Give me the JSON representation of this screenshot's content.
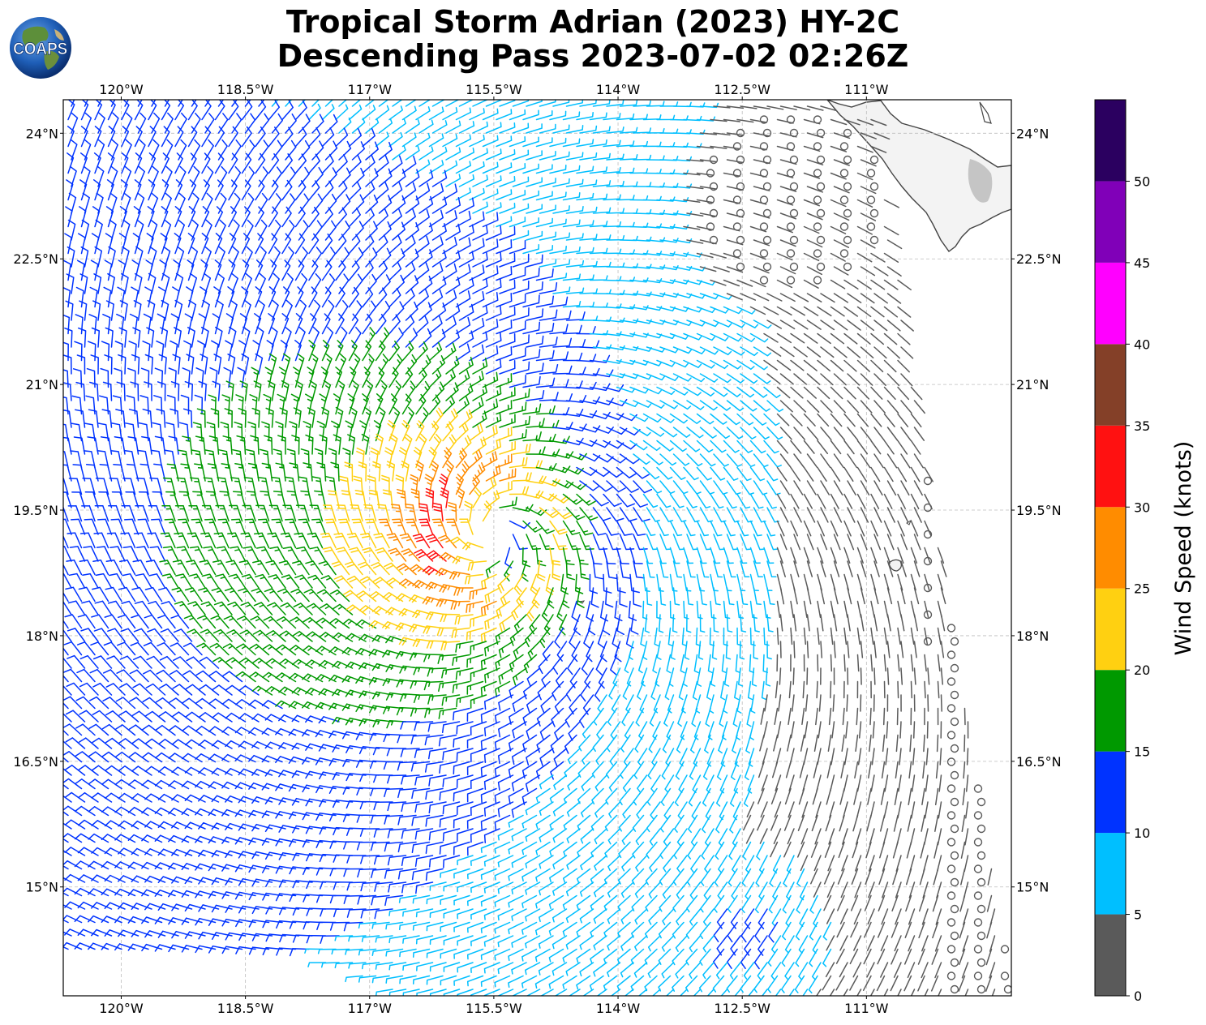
{
  "title": {
    "line1": "Tropical Storm Adrian (2023) HY-2C",
    "line2": "Descending Pass 2023-07-02 02:26Z"
  },
  "logo": {
    "text": "COAPS",
    "icon": "globe-icon"
  },
  "map": {
    "lon_range": [
      -120.7,
      -109.25
    ],
    "lat_range": [
      13.7,
      24.4
    ],
    "lon_ticks": [
      {
        "value": -120,
        "label": "120°W"
      },
      {
        "value": -118.5,
        "label": "118.5°W"
      },
      {
        "value": -117,
        "label": "117°W"
      },
      {
        "value": -115.5,
        "label": "115.5°W"
      },
      {
        "value": -114,
        "label": "114°W"
      },
      {
        "value": -112.5,
        "label": "112.5°W"
      },
      {
        "value": -111,
        "label": "111°W"
      }
    ],
    "lat_ticks": [
      {
        "value": 24,
        "label": "24°N"
      },
      {
        "value": 22.5,
        "label": "22.5°N"
      },
      {
        "value": 21,
        "label": "21°N"
      },
      {
        "value": 19.5,
        "label": "19.5°N"
      },
      {
        "value": 18,
        "label": "18°N"
      },
      {
        "value": 16.5,
        "label": "16.5°N"
      },
      {
        "value": 15,
        "label": "15°N"
      }
    ],
    "storm_center": {
      "lon": -115.5,
      "lat": 19.2
    },
    "grid": true,
    "land_color": "#f3f3f3",
    "coast_color": "#444444"
  },
  "colorbar": {
    "label": "Wind Speed (knots)",
    "bins": [
      {
        "min": 0,
        "max": 5,
        "color": "#5a5a5a"
      },
      {
        "min": 5,
        "max": 10,
        "color": "#00bfff"
      },
      {
        "min": 10,
        "max": 15,
        "color": "#0033ff"
      },
      {
        "min": 15,
        "max": 20,
        "color": "#009900"
      },
      {
        "min": 20,
        "max": 25,
        "color": "#ffd011"
      },
      {
        "min": 25,
        "max": 30,
        "color": "#ff8c00"
      },
      {
        "min": 30,
        "max": 35,
        "color": "#ff1111"
      },
      {
        "min": 35,
        "max": 40,
        "color": "#844028"
      },
      {
        "min": 40,
        "max": 45,
        "color": "#ff00ff"
      },
      {
        "min": 45,
        "max": 50,
        "color": "#8000b8"
      },
      {
        "min": 50,
        "max": 55,
        "color": "#2b0060"
      }
    ],
    "ticks": [
      {
        "value": 0,
        "label": "0"
      },
      {
        "value": 5,
        "label": "5"
      },
      {
        "value": 10,
        "label": "10"
      },
      {
        "value": 15,
        "label": "15"
      },
      {
        "value": 20,
        "label": "20"
      },
      {
        "value": 25,
        "label": "25"
      },
      {
        "value": 30,
        "label": "30"
      },
      {
        "value": 35,
        "label": "35"
      },
      {
        "value": 40,
        "label": "40"
      },
      {
        "value": 45,
        "label": "45"
      },
      {
        "value": 50,
        "label": "50"
      }
    ]
  },
  "legend_colors": {
    "calm": "#5a5a5a",
    "light": "#00bfff",
    "moderate": "#0033ff",
    "fresh": "#009900",
    "strong": "#ffd011",
    "gale": "#ff8c00"
  }
}
